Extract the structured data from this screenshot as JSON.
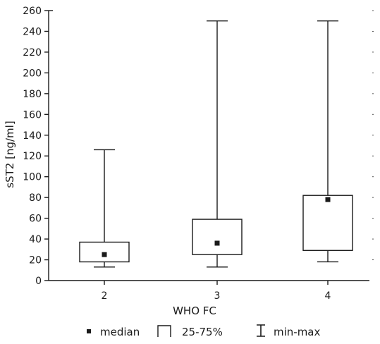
{
  "chart_data": {
    "type": "box",
    "xlabel": "WHO FC",
    "ylabel": "sST2 [ng/ml]",
    "ylim": [
      0,
      260
    ],
    "yticks": [
      0,
      20,
      40,
      60,
      80,
      100,
      120,
      140,
      160,
      180,
      200,
      220,
      240,
      260
    ],
    "categories": [
      "2",
      "3",
      "4"
    ],
    "boxes": [
      {
        "category": "2",
        "min": 13,
        "q1": 18,
        "median": 25,
        "q3": 37,
        "max": 126
      },
      {
        "category": "3",
        "min": 13,
        "q1": 25,
        "median": 36,
        "q3": 59,
        "max": 250
      },
      {
        "category": "4",
        "min": 18,
        "q1": 29,
        "median": 78,
        "q3": 82,
        "max": 250
      }
    ],
    "grid": false,
    "legend": {
      "position": "bottom",
      "entries": [
        {
          "symbol": "square",
          "label": "median"
        },
        {
          "symbol": "box",
          "label": "25-75%"
        },
        {
          "symbol": "whisker",
          "label": "min-max"
        }
      ]
    }
  }
}
